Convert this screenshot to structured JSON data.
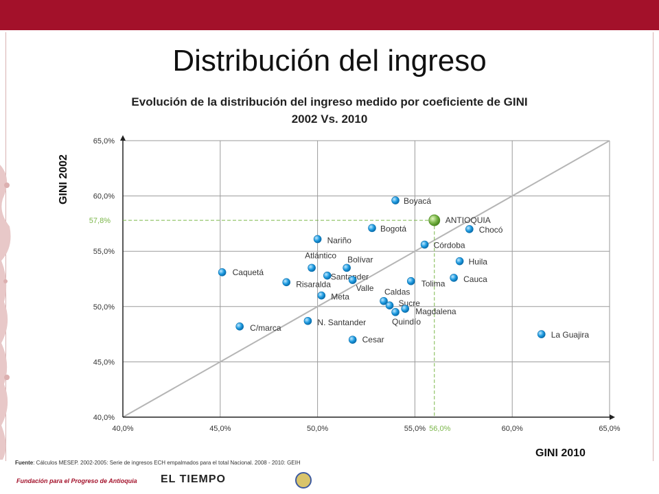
{
  "slide": {
    "title": "Distribución del ingreso",
    "source_prefix": "Fuente",
    "source_text": ": Cálculos MESEP. 2002-2005: Serie de ingresos ECH empalmados para el total Nacional. 2008 - 2010: GEIH",
    "logo_left": "Fundación para el Progreso de Antioquia",
    "logo_mid": "EL TIEMPO",
    "accent_color": "#a3112a"
  },
  "chart_data": {
    "type": "scatter",
    "title_line1": "Evolución de la distribución del ingreso medido por coeficiente de GINI",
    "title_line2": "2002 Vs. 2010",
    "xlabel": "GINI 2010",
    "ylabel": "GINI  2002",
    "xlim": [
      40,
      65
    ],
    "ylim": [
      40,
      65
    ],
    "x_ticks": [
      "40,0%",
      "45,0%",
      "50,0%",
      "55,0%",
      "60,0%",
      "65,0%"
    ],
    "y_ticks": [
      "40,0%",
      "45,0%",
      "50,0%",
      "55,0%",
      "60,0%",
      "65,0%"
    ],
    "grid": true,
    "diagonal_reference": true,
    "highlight_ref": {
      "x": 56.0,
      "y": 57.8,
      "x_label": "56,0%",
      "y_label": "57,8%"
    },
    "point_color": "#1e9be0",
    "highlight_color": "#7ab648",
    "points": [
      {
        "name": "Boyacá",
        "x": 54.0,
        "y": 59.6
      },
      {
        "name": "ANTIOQUIA",
        "x": 56.0,
        "y": 57.8,
        "highlight": true
      },
      {
        "name": "Chocó",
        "x": 57.8,
        "y": 57.0
      },
      {
        "name": "Bogotá",
        "x": 52.8,
        "y": 57.1
      },
      {
        "name": "Nariño",
        "x": 50.0,
        "y": 56.1
      },
      {
        "name": "Córdoba",
        "x": 55.5,
        "y": 55.6
      },
      {
        "name": "Huila",
        "x": 57.3,
        "y": 54.1
      },
      {
        "name": "Atlántico",
        "x": 49.7,
        "y": 53.5
      },
      {
        "name": "Bolívar",
        "x": 51.5,
        "y": 53.5
      },
      {
        "name": "Caquetá",
        "x": 45.1,
        "y": 53.1
      },
      {
        "name": "Santander",
        "x": 50.5,
        "y": 52.8
      },
      {
        "name": "Valle",
        "x": 51.8,
        "y": 52.4
      },
      {
        "name": "Cauca",
        "x": 57.0,
        "y": 52.6
      },
      {
        "name": "Tolima",
        "x": 54.8,
        "y": 52.3
      },
      {
        "name": "Risaralda",
        "x": 48.4,
        "y": 52.2
      },
      {
        "name": "Meta",
        "x": 50.2,
        "y": 51.0
      },
      {
        "name": "Caldas",
        "x": 53.4,
        "y": 50.5
      },
      {
        "name": "Sucre",
        "x": 53.7,
        "y": 50.1
      },
      {
        "name": "Magdalena",
        "x": 54.5,
        "y": 49.8
      },
      {
        "name": "Quindío",
        "x": 54.0,
        "y": 49.5
      },
      {
        "name": "N. Santander",
        "x": 49.5,
        "y": 48.7
      },
      {
        "name": "C/marca",
        "x": 46.0,
        "y": 48.2
      },
      {
        "name": "Cesar",
        "x": 51.8,
        "y": 47.0
      },
      {
        "name": "La Guajira",
        "x": 61.5,
        "y": 47.5
      }
    ]
  }
}
